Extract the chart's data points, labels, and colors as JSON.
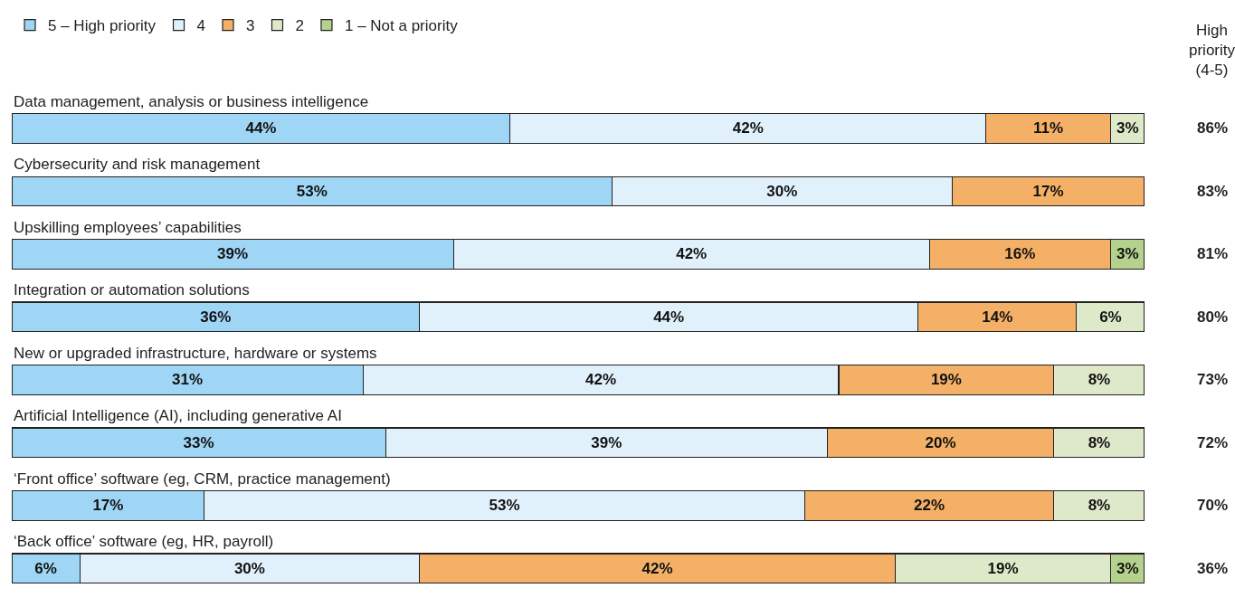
{
  "chart_data": {
    "type": "bar",
    "orientation": "horizontal",
    "stacked": true,
    "categories": [
      "Data management, analysis or business intelligence",
      "Cybersecurity and risk management",
      "Upskilling employees’ capabilities",
      "Integration or automation solutions",
      "New or upgraded infrastructure, hardware or systems",
      "Artificial Intelligence (AI), including generative AI",
      "‘Front office’ software (eg, CRM, practice management)",
      "‘Back office’ software (eg, HR, payroll)"
    ],
    "series": [
      {
        "name": "5 – High priority",
        "color": "#a0d6f5",
        "values": [
          44,
          53,
          39,
          36,
          31,
          33,
          17,
          6
        ],
        "value_labels": [
          "44%",
          "53%",
          "39%",
          "36%",
          "31%",
          "33%",
          "17%",
          "6%"
        ]
      },
      {
        "name": "4",
        "color": "#e1f1fb",
        "values": [
          42,
          30,
          42,
          44,
          42,
          39,
          53,
          30
        ],
        "value_labels": [
          "42%",
          "30%",
          "42%",
          "44%",
          "42%",
          "39%",
          "53%",
          "30%"
        ]
      },
      {
        "name": "3",
        "color": "#f4b066",
        "values": [
          11,
          17,
          16,
          14,
          19,
          20,
          22,
          42
        ],
        "value_labels": [
          "11%",
          "17%",
          "16%",
          "14%",
          "19%",
          "20%",
          "22%",
          "42%"
        ]
      },
      {
        "name": "2",
        "color": "#dde9c9",
        "values": [
          3,
          null,
          null,
          6,
          8,
          8,
          8,
          19
        ],
        "value_labels": [
          "3%",
          null,
          null,
          "6%",
          "8%",
          "8%",
          "8%",
          "19%"
        ]
      },
      {
        "name": "1 – Not a priority",
        "color": "#b5d18e",
        "values": [
          null,
          null,
          3,
          null,
          null,
          null,
          null,
          3
        ],
        "value_labels": [
          null,
          null,
          "3%",
          null,
          null,
          null,
          null,
          "3%"
        ]
      }
    ],
    "grid": false,
    "legend": "top left",
    "annotations": [
      "High priority (4-5)",
      "86%",
      "83%",
      "81%",
      "80%",
      "73%",
      "72%",
      "70%",
      "36%"
    ]
  }
}
